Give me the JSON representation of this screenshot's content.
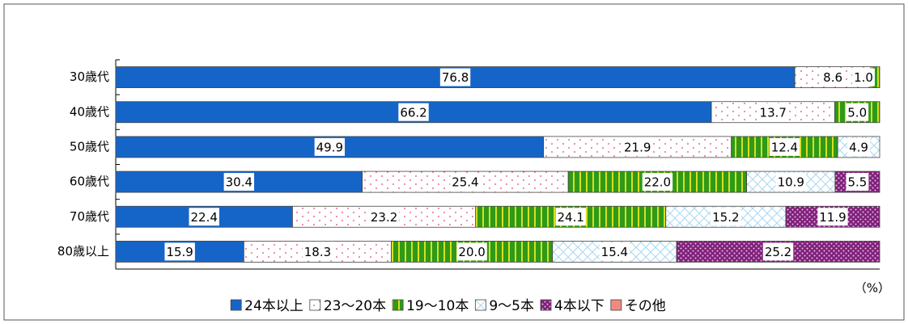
{
  "chart_data": {
    "type": "stacked-bar-100",
    "orientation": "horizontal",
    "categories": [
      "30歳代",
      "40歳代",
      "50歳代",
      "60歳代",
      "70歳代",
      "80歳以上"
    ],
    "series": [
      {
        "name": "24本以上",
        "color": "#1565c8",
        "values": [
          76.8,
          66.2,
          49.9,
          30.4,
          22.4,
          15.9
        ]
      },
      {
        "name": "23～20本",
        "color": "#e07090",
        "values": [
          8.6,
          13.7,
          21.9,
          25.4,
          23.2,
          18.3
        ]
      },
      {
        "name": "19～10本",
        "color": "#2e9a18",
        "values": [
          1.0,
          5.0,
          12.4,
          22.0,
          24.1,
          20.0
        ]
      },
      {
        "name": "9～5本",
        "color": "#a8d8f0",
        "values": [
          null,
          null,
          4.9,
          10.9,
          15.2,
          15.4
        ]
      },
      {
        "name": "4本以下",
        "color": "#80207a",
        "values": [
          null,
          null,
          null,
          5.5,
          11.9,
          25.2
        ]
      },
      {
        "name": "その他",
        "color": "#f08a80",
        "values": [
          null,
          null,
          null,
          null,
          null,
          null
        ]
      }
    ],
    "unit": "（%）",
    "legend": "bottom"
  }
}
